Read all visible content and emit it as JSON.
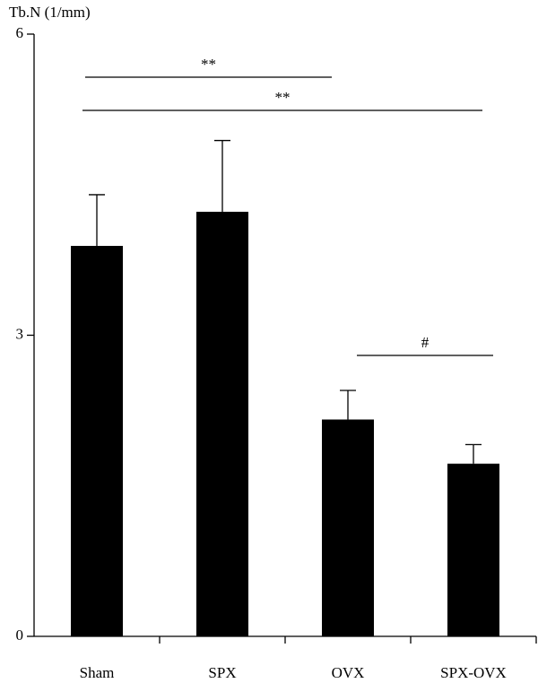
{
  "chart_data": {
    "type": "bar",
    "y_label": "Tb.N (1/mm)",
    "categories": [
      "Sham",
      "SPX",
      "OVX",
      "SPX-OVX"
    ],
    "values": [
      3.89,
      4.23,
      2.16,
      1.72
    ],
    "errors": [
      0.51,
      0.71,
      0.29,
      0.19
    ],
    "color": "#000000",
    "ylim": [
      0,
      6
    ],
    "yticks": [
      0,
      3,
      6
    ],
    "annotations": [
      "**",
      "**",
      "#"
    ]
  }
}
